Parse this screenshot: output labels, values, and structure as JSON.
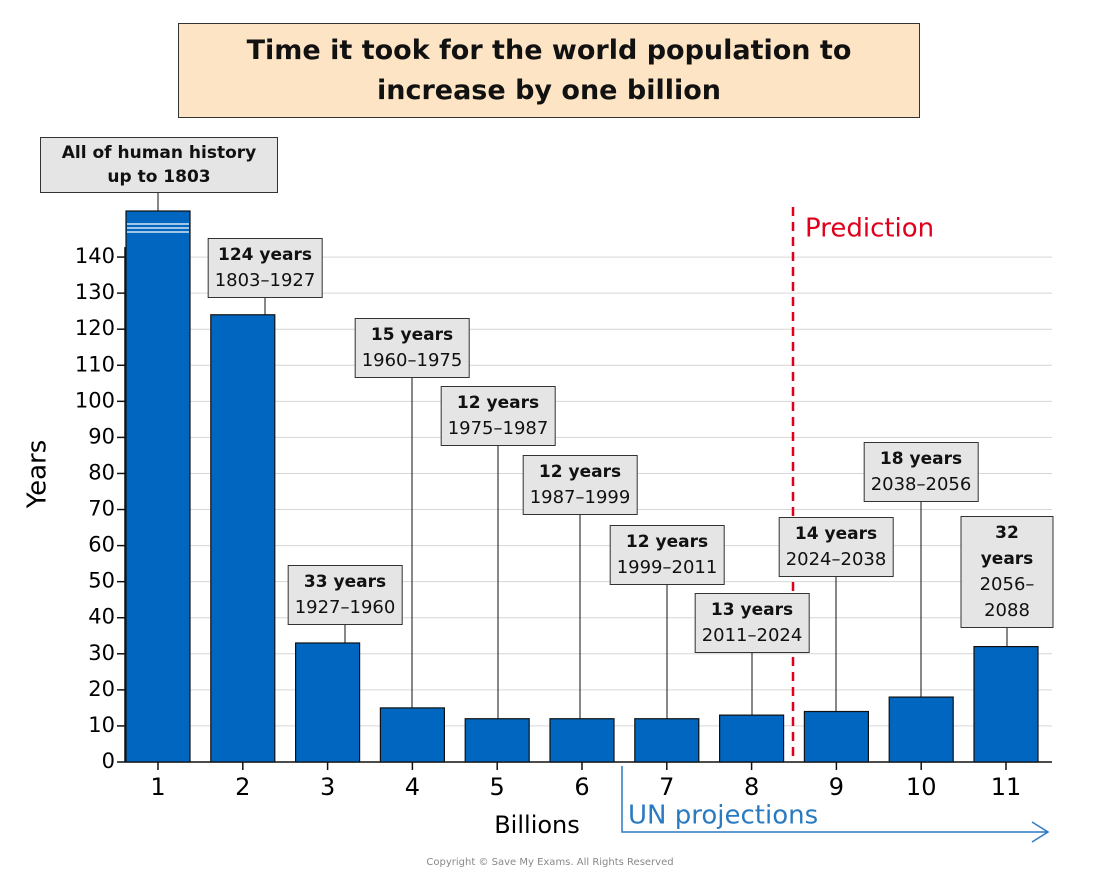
{
  "chart_data": {
    "type": "bar",
    "title": "Time it took for the world population to increase by one billion",
    "x_label": "Billions",
    "y_label": "Years",
    "categories": [
      "1",
      "2",
      "3",
      "4",
      "5",
      "6",
      "7",
      "8",
      "9",
      "10",
      "11"
    ],
    "values": [
      null,
      124,
      33,
      15,
      12,
      12,
      12,
      13,
      14,
      18,
      32
    ],
    "value_labels": [
      null,
      "124 years",
      "33 years",
      "15 years",
      "12 years",
      "12 years",
      "12 years",
      "13 years",
      "14 years",
      "18 years",
      "32 years"
    ],
    "periods": [
      null,
      "1803–1927",
      "1927–1960",
      "1960–1975",
      "1975–1987",
      "1987–1999",
      "1999–2011",
      "2011–2024",
      "2024–2038",
      "2038–2056",
      "2056–2088"
    ],
    "annotation": "All of human history up to 1803",
    "prediction_label": "Prediction",
    "projection_label": "UN projections",
    "copyright": "Copyright © Save My Exams. All Rights Reserved",
    "color": "#0066bf",
    "ylim": [
      0,
      150
    ],
    "yticks": [
      0,
      10,
      20,
      30,
      40,
      50,
      60,
      70,
      80,
      90,
      100,
      110,
      120,
      130,
      140
    ],
    "grid": true
  }
}
